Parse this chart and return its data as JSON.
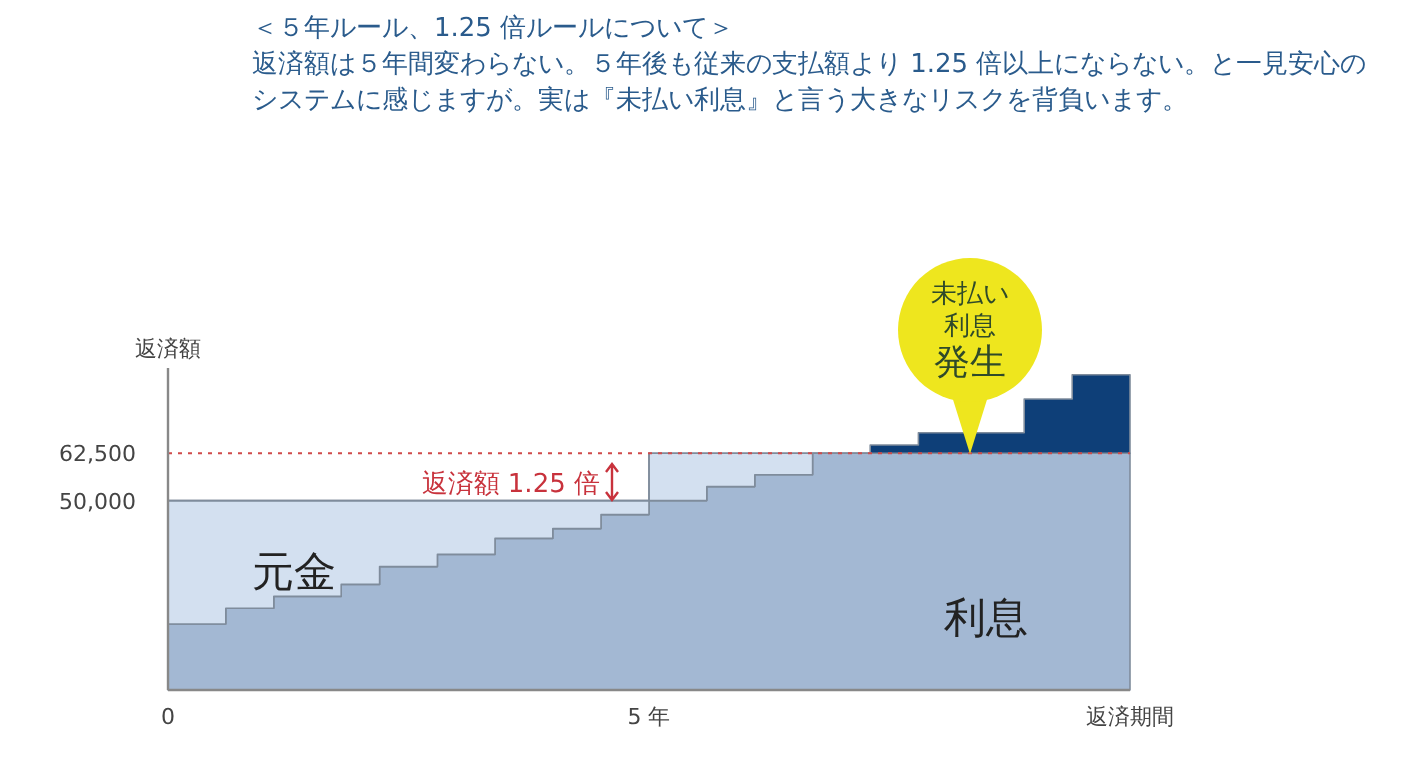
{
  "chart_data": {
    "type": "area",
    "stacked": true,
    "title": "＜５年ルール、1.25 倍ルールについて＞",
    "subtitle": "返済額は５年間変わらない。５年後も従来の支払額より 1.25 倍以上にならない。と一見安心のシステムに感じますが。実は『未払い利息』と言う大きなリスクを背負います。",
    "ylabel": "返済額",
    "x": [
      0,
      0.6,
      1.1,
      1.8,
      2.2,
      2.8,
      3.4,
      4.0,
      4.5,
      5.0,
      5.6,
      6.1,
      6.7,
      7.3,
      7.8,
      8.9,
      9.4,
      10
    ],
    "series": [
      {
        "color": "#a3b8d3",
        "values": [
          17400,
          21600,
          24700,
          27900,
          32600,
          35800,
          40000,
          42600,
          46300,
          50000,
          53700,
          56800,
          62500,
          62500,
          62500,
          62500,
          62500,
          62500
        ]
      },
      {
        "color": "#d3e0f0",
        "values": [
          32600,
          28400,
          25300,
          22100,
          17400,
          14200,
          10000,
          7400,
          3700,
          12500,
          8800,
          5700,
          0,
          0,
          0,
          0,
          0,
          0
        ]
      },
      {
        "color": "#0e3f78",
        "values": [
          0,
          0,
          0,
          0,
          0,
          0,
          0,
          0,
          0,
          0,
          0,
          0,
          0,
          2200,
          5400,
          14300,
          20700,
          20700
        ]
      }
    ],
    "line_style": "solid",
    "xlim": [
      0,
      10
    ],
    "xticks": [
      {
        "value": 0,
        "label": "0"
      },
      {
        "value": 5,
        "label": "5 年"
      },
      {
        "value": 10,
        "label": "返済期間"
      }
    ],
    "ylim": [
      0,
      85000
    ],
    "yticks": [
      {
        "value": 50000,
        "label": "50,000"
      },
      {
        "value": 62500,
        "label": "62,500"
      }
    ],
    "ref_lines": [
      {
        "axis": "y",
        "value": 62500,
        "color": "#d04a4a",
        "line_style": "dotted"
      }
    ],
    "annotations": [
      "元金",
      "利息",
      "返済額 1.25 倍",
      "未払い",
      "利息",
      "発生"
    ],
    "grid": false
  }
}
